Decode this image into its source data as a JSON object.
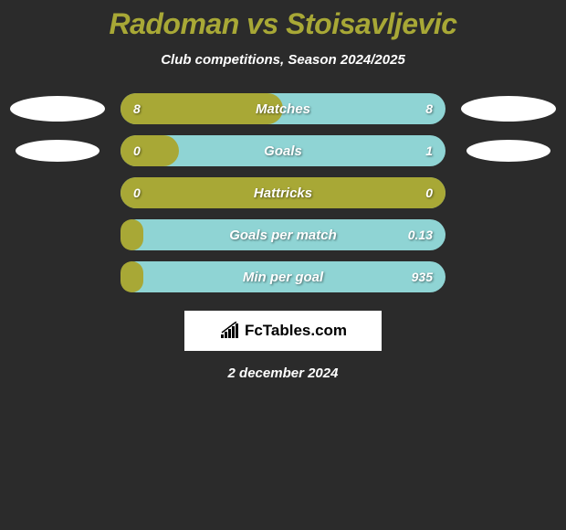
{
  "title": "Radoman vs Stoisavljevic",
  "subtitle": "Club competitions, Season 2024/2025",
  "colors": {
    "background": "#2b2b2b",
    "title_color": "#a8a836",
    "bar_fill": "#a8a836",
    "bar_bg": "#8fd4d4",
    "ellipse_color": "#ffffff",
    "text_color": "#ffffff"
  },
  "ellipses": {
    "row1_left": {
      "width": 104,
      "height": 28
    },
    "row1_right": {
      "width": 104,
      "height": 28
    },
    "row2_left": {
      "width": 92,
      "height": 24
    },
    "row2_right": {
      "width": 92,
      "height": 24
    }
  },
  "stats": [
    {
      "label": "Matches",
      "left_value": "8",
      "right_value": "8",
      "fill_percent": 50,
      "show_ellipses": true,
      "ellipse_key": "row1"
    },
    {
      "label": "Goals",
      "left_value": "0",
      "right_value": "1",
      "fill_percent": 18,
      "show_ellipses": true,
      "ellipse_key": "row2"
    },
    {
      "label": "Hattricks",
      "left_value": "0",
      "right_value": "0",
      "fill_percent": 100,
      "show_ellipses": false
    },
    {
      "label": "Goals per match",
      "left_value": "",
      "right_value": "0.13",
      "fill_percent": 7,
      "show_ellipses": false
    },
    {
      "label": "Min per goal",
      "left_value": "",
      "right_value": "935",
      "fill_percent": 7,
      "show_ellipses": false
    }
  ],
  "brand": "FcTables.com",
  "date": "2 december 2024"
}
